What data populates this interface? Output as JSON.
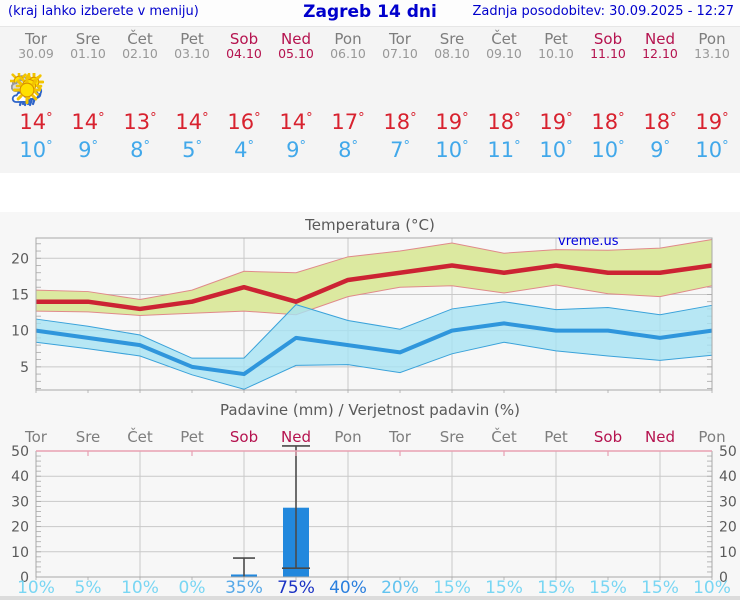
{
  "header": {
    "left": "(kraj lahko izberete v meniju)",
    "title": "Zagreb 14 dni",
    "right": "Zadnja posodobitev: 30.09.2025 - 12:27"
  },
  "watermark": "vreme.us",
  "days": [
    {
      "name": "Tor",
      "date": "30.09",
      "weekend": false,
      "icon": "cloudy",
      "tmax": 14,
      "tmin": 10,
      "prob": 10
    },
    {
      "name": "Sre",
      "date": "01.10",
      "weekend": false,
      "icon": "sun-cloud",
      "tmax": 14,
      "tmin": 9,
      "prob": 5
    },
    {
      "name": "Čet",
      "date": "02.10",
      "weekend": false,
      "icon": "sun-cloud",
      "tmax": 13,
      "tmin": 8,
      "prob": 10
    },
    {
      "name": "Pet",
      "date": "03.10",
      "weekend": false,
      "icon": "sunny",
      "tmax": 14,
      "tmin": 5,
      "prob": 0
    },
    {
      "name": "Sob",
      "date": "04.10",
      "weekend": true,
      "icon": "rain",
      "tmax": 16,
      "tmin": 4,
      "prob": 35
    },
    {
      "name": "Ned",
      "date": "05.10",
      "weekend": true,
      "icon": "sun-rain",
      "tmax": 14,
      "tmin": 9,
      "prob": 75
    },
    {
      "name": "Pon",
      "date": "06.10",
      "weekend": false,
      "icon": "sun-cloud",
      "tmax": 17,
      "tmin": 8,
      "prob": 40
    },
    {
      "name": "Tor",
      "date": "07.10",
      "weekend": false,
      "icon": "sun-small-cloud",
      "tmax": 18,
      "tmin": 7,
      "prob": 20
    },
    {
      "name": "Sre",
      "date": "08.10",
      "weekend": false,
      "icon": "sunny",
      "tmax": 19,
      "tmin": 10,
      "prob": 15
    },
    {
      "name": "Čet",
      "date": "09.10",
      "weekend": false,
      "icon": "sunny",
      "tmax": 18,
      "tmin": 11,
      "prob": 15
    },
    {
      "name": "Pet",
      "date": "10.10",
      "weekend": false,
      "icon": "sunny",
      "tmax": 19,
      "tmin": 10,
      "prob": 15
    },
    {
      "name": "Sob",
      "date": "11.10",
      "weekend": true,
      "icon": "sunny",
      "tmax": 18,
      "tmin": 10,
      "prob": 15
    },
    {
      "name": "Ned",
      "date": "12.10",
      "weekend": true,
      "icon": "sunny",
      "tmax": 18,
      "tmin": 9,
      "prob": 15
    },
    {
      "name": "Pon",
      "date": "13.10",
      "weekend": false,
      "icon": "sunny",
      "tmax": 19,
      "tmin": 10,
      "prob": 10
    }
  ],
  "chart_data": [
    {
      "type": "line",
      "title": "Temperatura (°C)",
      "categories": [
        "Tor",
        "Sre",
        "Čet",
        "Pet",
        "Sob",
        "Ned",
        "Pon",
        "Tor",
        "Sre",
        "Čet",
        "Pet",
        "Sob",
        "Ned",
        "Pon"
      ],
      "ylim": [
        1.8,
        22.8
      ],
      "yticks": [
        5,
        10,
        15,
        20
      ],
      "grid": true,
      "series": [
        {
          "name": "tmax",
          "values": [
            14,
            14,
            13,
            14,
            16,
            14,
            17,
            18,
            19,
            18,
            19,
            18,
            18,
            19
          ]
        },
        {
          "name": "tmax_band_upper",
          "values": [
            15.6,
            15.4,
            14.3,
            15.6,
            18.2,
            18.0,
            20.2,
            21.0,
            22.1,
            20.7,
            21.2,
            21.1,
            21.4,
            22.6
          ]
        },
        {
          "name": "tmax_band_lower",
          "values": [
            12.7,
            12.6,
            12.1,
            12.4,
            12.7,
            12.2,
            14.7,
            16.0,
            16.2,
            15.2,
            16.3,
            15.1,
            14.7,
            16.2
          ]
        },
        {
          "name": "tmin",
          "values": [
            10,
            9,
            8,
            5,
            4,
            9,
            8,
            7,
            10,
            11,
            10,
            10,
            9,
            10
          ]
        },
        {
          "name": "tmin_band_upper",
          "values": [
            11.6,
            10.6,
            9.4,
            6.2,
            6.2,
            13.6,
            11.4,
            10.2,
            13.0,
            14.0,
            12.9,
            13.2,
            12.2,
            13.5
          ]
        },
        {
          "name": "tmin_band_lower",
          "values": [
            8.4,
            7.5,
            6.5,
            3.9,
            1.9,
            5.2,
            5.3,
            4.2,
            6.8,
            8.4,
            7.2,
            6.5,
            5.9,
            6.6
          ]
        }
      ]
    },
    {
      "type": "bar",
      "title": "Padavine (mm) / Verjetnost padavin (%)",
      "categories": [
        "Tor",
        "Sre",
        "Čet",
        "Pet",
        "Sob",
        "Ned",
        "Pon",
        "Tor",
        "Sre",
        "Čet",
        "Pet",
        "Sob",
        "Ned",
        "Pon"
      ],
      "ylim": [
        0,
        50
      ],
      "yticks": [
        0,
        10,
        20,
        30,
        40,
        50
      ],
      "grid": true,
      "values": [
        0,
        0,
        0,
        0,
        1,
        27.5,
        0,
        0,
        0,
        0,
        0,
        0,
        0,
        0
      ],
      "whisker_low": [
        null,
        null,
        null,
        null,
        0,
        3.5,
        null,
        null,
        null,
        null,
        null,
        null,
        null,
        null
      ],
      "whisker_high": [
        null,
        null,
        null,
        null,
        7.5,
        52,
        null,
        null,
        null,
        null,
        null,
        null,
        null,
        null
      ],
      "probabilities_percent": [
        10,
        5,
        10,
        0,
        35,
        75,
        40,
        20,
        15,
        15,
        15,
        15,
        15,
        10
      ]
    }
  ],
  "colors": {
    "header_blue": "#0000cc",
    "weekend_red": "#b5134f",
    "tmax_red": "#d8222f",
    "tmin_blue": "#41a8ea",
    "line_red": "#cc2333",
    "line_blue": "#2f96dc",
    "band_green": "#dce9a0",
    "band_green_edge": "#e08a8a",
    "band_cyan": "#a6e2f2",
    "band_cyan_edge": "#3aa2da",
    "grid": "#c9c9c9",
    "axis": "#a8a8a8",
    "tick_label": "#5a5a5a",
    "bar_blue": "#2288dd",
    "whisker": "#4a4a4a",
    "precip_top_border": "#e8a0b2",
    "prob_scale": [
      {
        "min": 70,
        "color": "#1b33c4"
      },
      {
        "min": 40,
        "color": "#2a7fde"
      },
      {
        "min": 30,
        "color": "#57a9e8"
      },
      {
        "min": 20,
        "color": "#62c3ef"
      },
      {
        "min": 0,
        "color": "#79d6f3"
      }
    ]
  }
}
